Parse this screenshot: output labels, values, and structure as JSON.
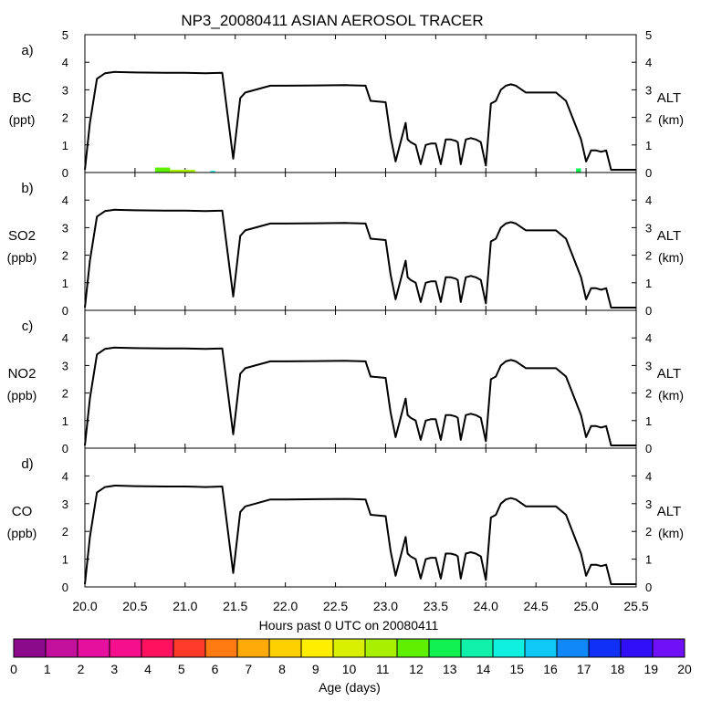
{
  "chart_data": {
    "type": "line",
    "title": "NP3_20080411 ASIAN AEROSOL TRACER",
    "xlabel": "Hours past 0 UTC on 20080411",
    "xlim": [
      20.0,
      25.5
    ],
    "x_ticks": [
      "20.0",
      "20.5",
      "21.0",
      "21.5",
      "22.0",
      "22.5",
      "23.0",
      "23.5",
      "24.0",
      "24.5",
      "25.0",
      "25.5"
    ],
    "x_tick_values": [
      20.0,
      20.5,
      21.0,
      21.5,
      22.0,
      22.5,
      23.0,
      23.5,
      24.0,
      24.5,
      25.0,
      25.5
    ],
    "altitude_series": {
      "name": "ALT (km)",
      "x": [
        20.0,
        20.05,
        20.12,
        20.2,
        20.3,
        20.5,
        20.8,
        21.0,
        21.1,
        21.2,
        21.37,
        21.48,
        21.55,
        21.6,
        21.7,
        21.85,
        22.0,
        22.3,
        22.6,
        22.8,
        22.85,
        23.0,
        23.05,
        23.1,
        23.15,
        23.2,
        23.22,
        23.25,
        23.3,
        23.35,
        23.4,
        23.45,
        23.5,
        23.55,
        23.6,
        23.65,
        23.7,
        23.72,
        23.75,
        23.8,
        23.85,
        23.9,
        23.95,
        24.0,
        24.05,
        24.1,
        24.15,
        24.2,
        24.25,
        24.3,
        24.4,
        24.5,
        24.6,
        24.7,
        24.8,
        24.95,
        25.0,
        25.05,
        25.1,
        25.15,
        25.2,
        25.25,
        25.35,
        25.4,
        25.5
      ],
      "y": [
        0.1,
        1.8,
        3.4,
        3.6,
        3.65,
        3.63,
        3.62,
        3.62,
        3.61,
        3.6,
        3.62,
        0.5,
        2.7,
        2.9,
        3.0,
        3.15,
        3.15,
        3.16,
        3.17,
        3.15,
        2.6,
        2.55,
        1.3,
        0.4,
        1.1,
        1.8,
        1.2,
        1.1,
        1.0,
        0.3,
        1.0,
        1.05,
        1.05,
        0.3,
        1.2,
        1.2,
        1.15,
        1.1,
        0.3,
        1.2,
        1.25,
        1.2,
        1.1,
        0.25,
        2.5,
        2.6,
        3.0,
        3.15,
        3.2,
        3.15,
        2.9,
        2.9,
        2.9,
        2.9,
        2.6,
        1.2,
        0.4,
        0.8,
        0.8,
        0.75,
        0.8,
        0.1,
        0.1,
        0.1,
        0.1
      ]
    },
    "tracer_marks": [
      {
        "panel": "a",
        "x0": 20.7,
        "x1": 20.85,
        "value": 0.18,
        "age": 12
      },
      {
        "panel": "a",
        "x0": 20.85,
        "x1": 21.1,
        "value": 0.1,
        "age": 11
      },
      {
        "panel": "a",
        "x0": 21.25,
        "x1": 21.3,
        "value": 0.06,
        "age": 15
      },
      {
        "panel": "a",
        "x0": 24.9,
        "x1": 24.95,
        "value": 0.15,
        "age": 13
      }
    ],
    "panels": [
      {
        "letter": "a)",
        "species": "BC",
        "unit": "(ppt)",
        "ylim": [
          0,
          5
        ],
        "yticks": [
          "0",
          "1",
          "2",
          "3",
          "4",
          "5"
        ],
        "alt_ticks": [
          "0",
          "1",
          "2",
          "3",
          "4",
          "5"
        ],
        "alt_label": "ALT",
        "alt_unit": "(km)"
      },
      {
        "letter": "b)",
        "species": "SO2",
        "unit": "(ppb)",
        "ylim": [
          0,
          5
        ],
        "yticks": [
          "0",
          "1",
          "2",
          "3",
          "4"
        ],
        "alt_ticks": [
          "0",
          "1",
          "2",
          "3",
          "4"
        ],
        "alt_label": "ALT",
        "alt_unit": "(km)"
      },
      {
        "letter": "c)",
        "species": "NO2",
        "unit": "(ppb)",
        "ylim": [
          0,
          5
        ],
        "yticks": [
          "0",
          "1",
          "2",
          "3",
          "4"
        ],
        "alt_ticks": [
          "0",
          "1",
          "2",
          "3",
          "4"
        ],
        "alt_label": "ALT",
        "alt_unit": "(km)"
      },
      {
        "letter": "d)",
        "species": "CO",
        "unit": "(ppb)",
        "ylim": [
          0,
          5
        ],
        "yticks": [
          "0",
          "1",
          "2",
          "3",
          "4"
        ],
        "alt_ticks": [
          "0",
          "1",
          "2",
          "3",
          "4"
        ],
        "alt_label": "ALT",
        "alt_unit": "(km)"
      }
    ],
    "colorbar": {
      "label": "Age (days)",
      "ticks": [
        "0",
        "1",
        "2",
        "3",
        "4",
        "5",
        "6",
        "7",
        "8",
        "9",
        "10",
        "11",
        "12",
        "13",
        "14",
        "15",
        "16",
        "17",
        "18",
        "19",
        "20"
      ],
      "colors": [
        "#8b0a8b",
        "#c2109c",
        "#e6109e",
        "#f50f8c",
        "#ff1160",
        "#ff3a2a",
        "#ff7a10",
        "#ffaa08",
        "#ffd000",
        "#ffee00",
        "#d8f000",
        "#a8f000",
        "#5ef000",
        "#10f050",
        "#10f0a8",
        "#10f0e0",
        "#10c8f8",
        "#1088f8",
        "#1030f8",
        "#3010f8",
        "#7010f8"
      ]
    }
  }
}
